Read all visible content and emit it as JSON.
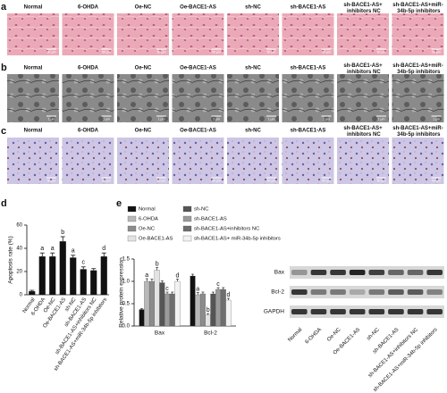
{
  "panel_labels": [
    "a",
    "b",
    "c",
    "d",
    "e"
  ],
  "image_rows": [
    {
      "labels": [
        "Normal",
        "6-OHDA",
        "Oe-NC",
        "Oe-BACE1-AS",
        "sh-NC",
        "sh-BACE1-AS",
        "sh-BACE1-AS+ inhibitors NC",
        "sh-BACE1-AS+miR- 34b-5p inhibitors"
      ],
      "scale_bar": "50 μm"
    },
    {
      "labels": [
        "Normal",
        "6-OHDA",
        "Oe-NC",
        "Oe-BACE1-AS",
        "sh-NC",
        "sh-BACE1-AS",
        "sh-BACE1-AS+ inhibitors NC",
        "sh-BACE1-AS+miR- 34b-5p inhibitors"
      ],
      "scale_bar": "1 μm"
    },
    {
      "labels": [
        "Normal",
        "6-OHDA",
        "Oe-NC",
        "Oe-BACE1-AS",
        "sh-NC",
        "sh-BACE1-AS",
        "sh-BACE1-AS+ inhibitors NC",
        "sh-BACE1-AS+miR- 34b-5p inhibitors"
      ],
      "scale_bar": "50 μm"
    }
  ],
  "chart_data": [
    {
      "type": "bar",
      "y_label": "Apoptosis rate (%)",
      "categories": [
        "Normal",
        "6-OHDA",
        "Oe-NC",
        "Oe-BACE1-AS",
        "sh-NC",
        "sh-BACE1-AS",
        "sh-BACE1-AS+inhibitors NC",
        "sh-BACE1-AS+miR-34b-5p inhibitors"
      ],
      "values": [
        3,
        33,
        33,
        46,
        32,
        22,
        21,
        33
      ],
      "errors": [
        0.8,
        3,
        3,
        4,
        2,
        2,
        1.5,
        3
      ],
      "annotations": [
        null,
        "a",
        "a",
        "b",
        "a",
        "c",
        null,
        "d"
      ],
      "color": "#111111",
      "ylim": [
        0,
        60
      ],
      "yticks": [
        0,
        20,
        40,
        60
      ]
    },
    {
      "type": "grouped_bar",
      "y_label": "Relative protein expression",
      "categories": [
        "Bax",
        "Bcl-2"
      ],
      "series": [
        {
          "name": "Normal",
          "color": "#111111",
          "values": [
            0.37,
            1.12
          ],
          "errors": [
            0.02,
            0.04
          ],
          "annotations": [
            null,
            null
          ]
        },
        {
          "name": "6-OHDA",
          "color": "#b8b8b8",
          "values": [
            1.0,
            0.7
          ],
          "errors": [
            0.06,
            0.05
          ],
          "annotations": [
            "a",
            "a"
          ]
        },
        {
          "name": "Oe-NC",
          "color": "#8c8c8c",
          "values": [
            1.0,
            0.72
          ],
          "errors": [
            0.05,
            0.04
          ],
          "annotations": [
            null,
            null
          ]
        },
        {
          "name": "Oe-BACE1-AS",
          "color": "#e3e3e3",
          "values": [
            1.25,
            0.25
          ],
          "errors": [
            0.06,
            0.03
          ],
          "annotations": [
            "b",
            "b"
          ]
        },
        {
          "name": "sh-NC",
          "color": "#555555",
          "values": [
            0.97,
            0.72
          ],
          "errors": [
            0.04,
            0.04
          ],
          "annotations": [
            null,
            null
          ]
        },
        {
          "name": "sh-BACE1-AS",
          "color": "#9a9a9a",
          "values": [
            0.72,
            0.82
          ],
          "errors": [
            0.04,
            0.04
          ],
          "annotations": [
            "c",
            "c"
          ]
        },
        {
          "name": "sh-BACE1-AS+inhibitors NC",
          "color": "#6e6e6e",
          "values": [
            0.72,
            0.82
          ],
          "errors": [
            0.04,
            0.04
          ],
          "annotations": [
            null,
            null
          ]
        },
        {
          "name": "sh-BACE1-AS+ miR-34b-5p inhibitors",
          "color": "#f2f2f2",
          "values": [
            1.0,
            0.58
          ],
          "errors": [
            0.05,
            0.04
          ],
          "annotations": [
            "d",
            "d"
          ]
        }
      ],
      "ylim": [
        0,
        1.5
      ],
      "yticks": [
        {
          "value": 0,
          "label": "0.0"
        },
        {
          "value": 0.5,
          "label": "0.5"
        },
        {
          "value": 1,
          "label": "1.0"
        },
        {
          "value": 1.5,
          "label": "1.5"
        }
      ]
    }
  ],
  "blot": {
    "rows": [
      "Bax",
      "Bcl-2",
      "GAPDH"
    ],
    "lanes": [
      "Normal",
      "6-OHDA",
      "Oe-NC",
      "Oe-BACE1-AS",
      "sh-NC",
      "sh-BACE1-AS",
      "sh-BACE1-AS+inhibitors NC",
      "sh-BACE1-AS+miR-34b-5p inhibitors"
    ]
  }
}
